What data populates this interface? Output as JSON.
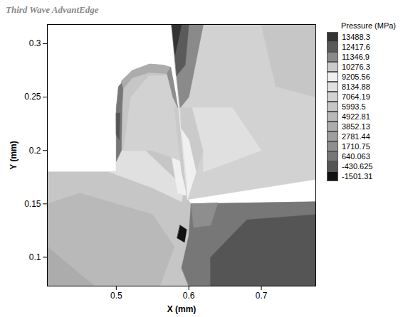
{
  "chart_data": {
    "type": "contour",
    "title": "Third Wave AdvantEdge",
    "xlabel": "X (mm)",
    "ylabel": "Y (mm)",
    "xlim": [
      0.405,
      0.775
    ],
    "ylim": [
      0.073,
      0.318
    ],
    "xticks": [
      0.5,
      0.6,
      0.7
    ],
    "yticks": [
      0.1,
      0.15,
      0.2,
      0.25,
      0.3
    ],
    "legend": "right",
    "colorbar": {
      "title": "Pressure (MPa)",
      "levels": [
        13488.3,
        12417.6,
        11346.9,
        10276.3,
        9205.56,
        8134.88,
        7064.19,
        5993.5,
        4922.81,
        3852.13,
        2781.44,
        1710.75,
        640.063,
        -430.625,
        -1501.31
      ],
      "colors": [
        "#333333",
        "#5a5a5a",
        "#8a8a8a",
        "#cacaca",
        "#f0f0f0",
        "#e0e0e0",
        "#d2d2d2",
        "#c6c6c6",
        "#b9b9b9",
        "#acacac",
        "#9e9e9e",
        "#8e8e8e",
        "#777777",
        "#555555",
        "#111111"
      ]
    },
    "regions": [
      {
        "value": 5993.5,
        "points": [
          [
            0.405,
            0.073
          ],
          [
            0.775,
            0.073
          ],
          [
            0.775,
            0.152
          ],
          [
            0.603,
            0.15
          ],
          [
            0.598,
            0.155
          ],
          [
            0.595,
            0.17
          ],
          [
            0.585,
            0.24
          ],
          [
            0.575,
            0.278
          ],
          [
            0.565,
            0.28
          ],
          [
            0.546,
            0.281
          ],
          [
            0.522,
            0.275
          ],
          [
            0.507,
            0.265
          ],
          [
            0.5,
            0.24
          ],
          [
            0.5,
            0.18
          ],
          [
            0.405,
            0.18
          ]
        ]
      },
      {
        "value": 7064.19,
        "points": [
          [
            0.5765,
            0.318
          ],
          [
            0.775,
            0.318
          ],
          [
            0.775,
            0.173
          ],
          [
            0.598,
            0.154
          ]
        ]
      },
      {
        "value": 4922.81,
        "points": [
          [
            0.405,
            0.11
          ],
          [
            0.47,
            0.073
          ],
          [
            0.56,
            0.073
          ],
          [
            0.58,
            0.11
          ],
          [
            0.55,
            0.14
          ],
          [
            0.45,
            0.16
          ],
          [
            0.405,
            0.15
          ]
        ]
      },
      {
        "value": 3852.13,
        "points": [
          [
            0.405,
            0.073
          ],
          [
            0.47,
            0.073
          ],
          [
            0.405,
            0.11
          ]
        ]
      },
      {
        "value": 8134.88,
        "points": [
          [
            0.49,
            0.18
          ],
          [
            0.5,
            0.18
          ],
          [
            0.5,
            0.2
          ],
          [
            0.54,
            0.2
          ],
          [
            0.594,
            0.165
          ],
          [
            0.59,
            0.152
          ],
          [
            0.55,
            0.165
          ]
        ]
      },
      {
        "value": 9205.56,
        "points": [
          [
            0.585,
            0.16
          ],
          [
            0.596,
            0.158
          ],
          [
            0.594,
            0.18
          ],
          [
            0.585,
            0.22
          ],
          [
            0.575,
            0.2
          ]
        ]
      },
      {
        "value": 640.063,
        "points": [
          [
            0.6,
            0.073
          ],
          [
            0.775,
            0.073
          ],
          [
            0.775,
            0.152
          ],
          [
            0.603,
            0.15
          ],
          [
            0.6,
            0.12
          ],
          [
            0.59,
            0.09
          ]
        ]
      },
      {
        "value": -430.625,
        "points": [
          [
            0.63,
            0.073
          ],
          [
            0.775,
            0.073
          ],
          [
            0.775,
            0.14
          ],
          [
            0.68,
            0.135
          ],
          [
            0.63,
            0.1
          ]
        ]
      },
      {
        "value": 1710.75,
        "points": [
          [
            0.603,
            0.15
          ],
          [
            0.64,
            0.151
          ],
          [
            0.63,
            0.13
          ],
          [
            0.607,
            0.128
          ]
        ]
      },
      {
        "value": -1501.31,
        "points": [
          [
            0.584,
            0.118
          ],
          [
            0.594,
            0.114
          ],
          [
            0.597,
            0.126
          ],
          [
            0.588,
            0.13
          ]
        ]
      },
      {
        "value": 7064.19,
        "points": [
          [
            0.51,
            0.2
          ],
          [
            0.52,
            0.25
          ],
          [
            0.545,
            0.27
          ],
          [
            0.57,
            0.27
          ],
          [
            0.583,
            0.24
          ],
          [
            0.59,
            0.19
          ],
          [
            0.55,
            0.2
          ]
        ]
      },
      {
        "value": 640.063,
        "points": [
          [
            0.5,
            0.19
          ],
          [
            0.5,
            0.24
          ],
          [
            0.503,
            0.26
          ],
          [
            0.51,
            0.265
          ],
          [
            0.508,
            0.24
          ],
          [
            0.507,
            0.2
          ]
        ]
      },
      {
        "value": -430.625,
        "points": [
          [
            0.5,
            0.215
          ],
          [
            0.504,
            0.21
          ],
          [
            0.505,
            0.235
          ],
          [
            0.5,
            0.235
          ]
        ]
      },
      {
        "value": 3852.13,
        "points": [
          [
            0.507,
            0.265
          ],
          [
            0.522,
            0.275
          ],
          [
            0.546,
            0.281
          ],
          [
            0.565,
            0.28
          ],
          [
            0.575,
            0.278
          ],
          [
            0.57,
            0.272
          ],
          [
            0.545,
            0.273
          ],
          [
            0.522,
            0.268
          ],
          [
            0.51,
            0.258
          ]
        ]
      },
      {
        "value": 10276.3,
        "points": [
          [
            0.585,
            0.24
          ],
          [
            0.595,
            0.17
          ],
          [
            0.597,
            0.16
          ],
          [
            0.59,
            0.18
          ],
          [
            0.58,
            0.24
          ]
        ]
      },
      {
        "value": 1710.75,
        "points": [
          [
            0.575,
            0.278
          ],
          [
            0.58,
            0.26
          ],
          [
            0.585,
            0.24
          ],
          [
            0.578,
            0.25
          ],
          [
            0.57,
            0.272
          ]
        ]
      },
      {
        "value": 11346.9,
        "points": [
          [
            0.6,
            0.318
          ],
          [
            0.62,
            0.318
          ],
          [
            0.6,
            0.25
          ],
          [
            0.588,
            0.24
          ],
          [
            0.583,
            0.27
          ],
          [
            0.595,
            0.28
          ]
        ]
      },
      {
        "value": 12417.6,
        "points": [
          [
            0.5765,
            0.318
          ],
          [
            0.6,
            0.318
          ],
          [
            0.595,
            0.28
          ],
          [
            0.583,
            0.27
          ]
        ]
      },
      {
        "value": 13488.3,
        "points": [
          [
            0.5765,
            0.318
          ],
          [
            0.59,
            0.318
          ],
          [
            0.581,
            0.29
          ]
        ]
      },
      {
        "value": 10276.3,
        "points": [
          [
            0.59,
            0.24
          ],
          [
            0.605,
            0.24
          ],
          [
            0.62,
            0.2
          ],
          [
            0.61,
            0.18
          ],
          [
            0.6,
            0.21
          ],
          [
            0.59,
            0.22
          ]
        ]
      },
      {
        "value": 9205.56,
        "points": [
          [
            0.59,
            0.22
          ],
          [
            0.6,
            0.21
          ],
          [
            0.61,
            0.18
          ],
          [
            0.598,
            0.154
          ],
          [
            0.597,
            0.17
          ]
        ]
      },
      {
        "value": 8134.88,
        "points": [
          [
            0.605,
            0.24
          ],
          [
            0.66,
            0.24
          ],
          [
            0.7,
            0.2
          ],
          [
            0.62,
            0.18
          ],
          [
            0.62,
            0.2
          ]
        ]
      },
      {
        "value": 5993.5,
        "points": [
          [
            0.7,
            0.318
          ],
          [
            0.775,
            0.318
          ],
          [
            0.775,
            0.25
          ],
          [
            0.72,
            0.26
          ]
        ]
      }
    ]
  }
}
